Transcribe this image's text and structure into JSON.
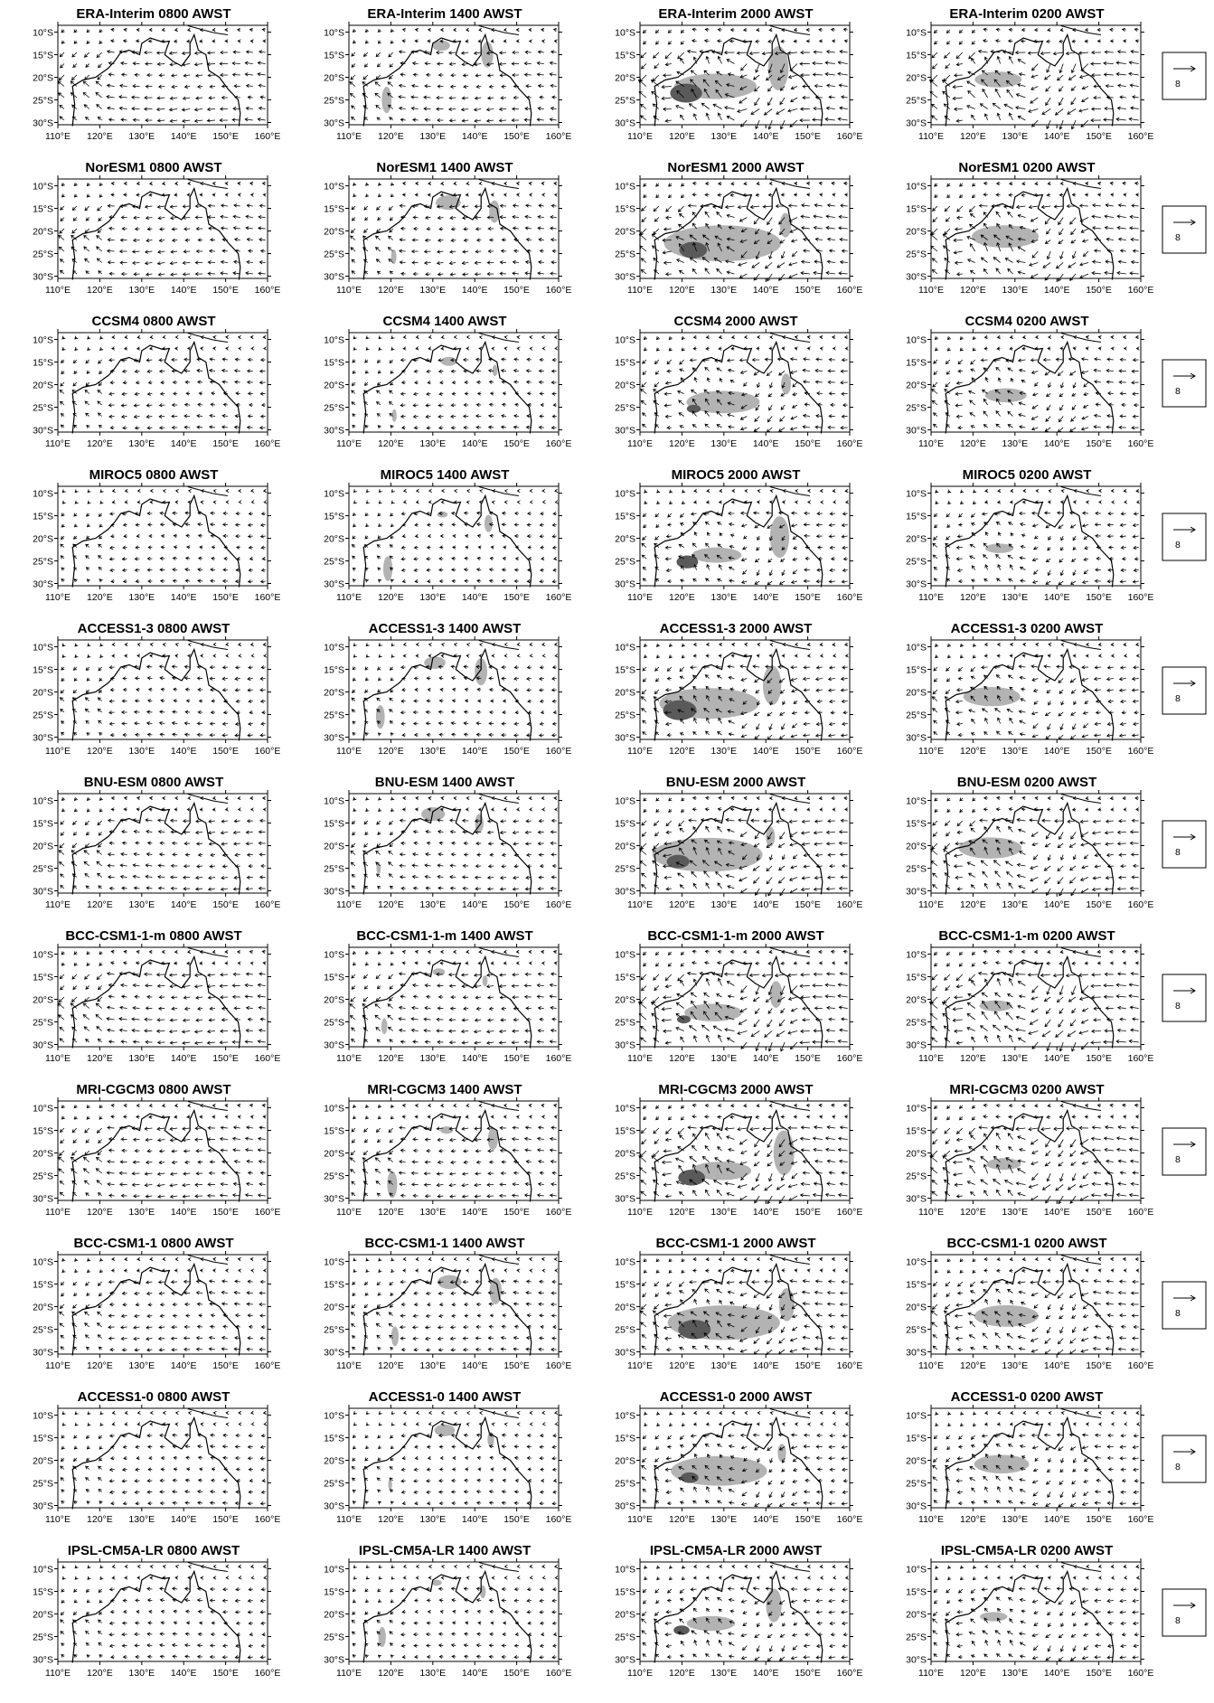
{
  "rows": [
    {
      "panels": [
        "ERA-Interim 0800 AWST",
        "ERA-Interim 1400 AWST",
        "ERA-Interim 2000 AWST",
        "ERA-Interim 0200 AWST"
      ]
    },
    {
      "panels": [
        "NorESM1 0800 AWST",
        "NorESM1 1400 AWST",
        "NorESM1 2000 AWST",
        "NorESM1 0200 AWST"
      ]
    },
    {
      "panels": [
        "CCSM4 0800 AWST",
        "CCSM4 1400 AWST",
        "CCSM4 2000 AWST",
        "CCSM4 0200 AWST"
      ]
    },
    {
      "panels": [
        "MIROC5 0800 AWST",
        "MIROC5 1400 AWST",
        "MIROC5 2000 AWST",
        "MIROC5 0200 AWST"
      ]
    },
    {
      "panels": [
        "ACCESS1-3 0800 AWST",
        "ACCESS1-3 1400 AWST",
        "ACCESS1-3 2000 AWST",
        "ACCESS1-3 0200 AWST"
      ]
    },
    {
      "panels": [
        "BNU-ESM 0800 AWST",
        "BNU-ESM 1400 AWST",
        "BNU-ESM 2000 AWST",
        "BNU-ESM 0200 AWST"
      ]
    },
    {
      "panels": [
        "BCC-CSM1-1-m 0800 AWST",
        "BCC-CSM1-1-m 1400 AWST",
        "BCC-CSM1-1-m 2000 AWST",
        "BCC-CSM1-1-m 0200 AWST"
      ]
    },
    {
      "panels": [
        "MRI-CGCM3 0800 AWST",
        "MRI-CGCM3 1400 AWST",
        "MRI-CGCM3 2000 AWST",
        "MRI-CGCM3 0200 AWST"
      ]
    },
    {
      "panels": [
        "BCC-CSM1-1 0800 AWST",
        "BCC-CSM1-1 1400 AWST",
        "BCC-CSM1-1 2000 AWST",
        "BCC-CSM1-1 0200 AWST"
      ]
    },
    {
      "panels": [
        "ACCESS1-0 0800 AWST",
        "ACCESS1-0 1400 AWST",
        "ACCESS1-0 2000 AWST",
        "ACCESS1-0 0200 AWST"
      ]
    },
    {
      "panels": [
        "IPSL-CM5A-LR 0800 AWST",
        "IPSL-CM5A-LR 1400 AWST",
        "IPSL-CM5A-LR 2000 AWST",
        "IPSL-CM5A-LR 0200 AWST"
      ]
    }
  ],
  "axes": {
    "xticks": [
      {
        "value": 110,
        "label": "110°E"
      },
      {
        "value": 120,
        "label": "120°E"
      },
      {
        "value": 130,
        "label": "130°E"
      },
      {
        "value": 140,
        "label": "140°E"
      },
      {
        "value": 150,
        "label": "150°E"
      },
      {
        "value": 160,
        "label": "160°E"
      }
    ],
    "yticks": [
      {
        "value": -10,
        "label": "10°S"
      },
      {
        "value": -15,
        "label": "15°S"
      },
      {
        "value": -20,
        "label": "20°S"
      },
      {
        "value": -25,
        "label": "25°S"
      },
      {
        "value": -30,
        "label": "30°S"
      }
    ]
  },
  "reference_label": "8"
}
